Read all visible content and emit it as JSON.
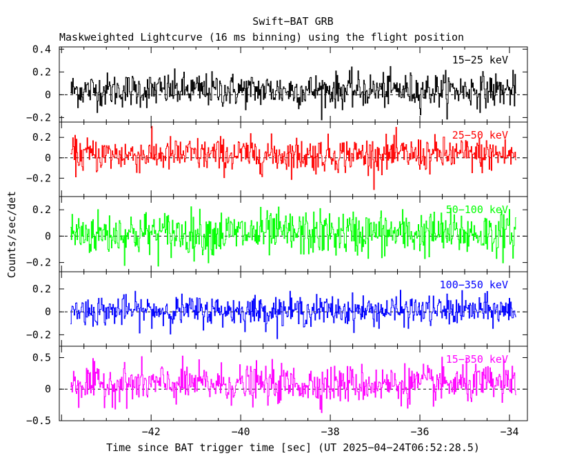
{
  "chart_data": {
    "type": "line",
    "title": "Swift−BAT GRB",
    "subtitle": "Maskweighted Lightcurve (16 ms binning) using the flight position",
    "xlabel": "Time since BAT trigger time [sec] (UT 2025−04−24T06:52:28.5)",
    "ylabel": "Counts/sec/det",
    "xlim": [
      -44.05,
      -33.6
    ],
    "x_range": [
      -43.8,
      -33.85
    ],
    "bin_width": 0.016,
    "x_ticks": [
      -42,
      -40,
      -38,
      -36,
      -34
    ],
    "x_tick_labels": [
      "−42",
      "−40",
      "−38",
      "−36",
      "−34"
    ],
    "panels": [
      {
        "name": "15−25 keV",
        "color": "#000000",
        "ylim": [
          -0.24,
          0.42
        ],
        "y_ticks": [
          -0.2,
          0,
          0.2,
          0.4
        ],
        "y_tick_labels": [
          "−0.2",
          "0",
          "0.2",
          "0.4"
        ],
        "mean": 0.04,
        "sigma": 0.075,
        "clip": [
          -0.24,
          0.42
        ]
      },
      {
        "name": "25−50 keV",
        "color": "#ff0000",
        "ylim": [
          -0.38,
          0.35
        ],
        "y_ticks": [
          -0.2,
          0,
          0.2
        ],
        "y_tick_labels": [
          "−0.2",
          "0",
          "0.2"
        ],
        "mean": 0.03,
        "sigma": 0.085,
        "clip": [
          -0.38,
          0.35
        ]
      },
      {
        "name": "50−100 keV",
        "color": "#00ff00",
        "ylim": [
          -0.27,
          0.3
        ],
        "y_ticks": [
          -0.2,
          0,
          0.2
        ],
        "y_tick_labels": [
          "−0.2",
          "0",
          "0.2"
        ],
        "mean": 0.02,
        "sigma": 0.085,
        "clip": [
          -0.27,
          0.3
        ]
      },
      {
        "name": "100−350 keV",
        "color": "#0000ff",
        "ylim": [
          -0.3,
          0.35
        ],
        "y_ticks": [
          -0.2,
          0,
          0.2
        ],
        "y_tick_labels": [
          "−0.2",
          "0",
          "0.2"
        ],
        "mean": 0.01,
        "sigma": 0.065,
        "clip": [
          -0.3,
          0.35
        ]
      },
      {
        "name": "15−350 keV",
        "color": "#ff00ff",
        "ylim": [
          -0.5,
          0.68
        ],
        "y_ticks": [
          -0.5,
          0,
          0.5
        ],
        "y_tick_labels": [
          "−0.5",
          "0",
          "0.5"
        ],
        "mean": 0.08,
        "sigma": 0.15,
        "clip": [
          -0.5,
          0.68
        ]
      }
    ]
  }
}
